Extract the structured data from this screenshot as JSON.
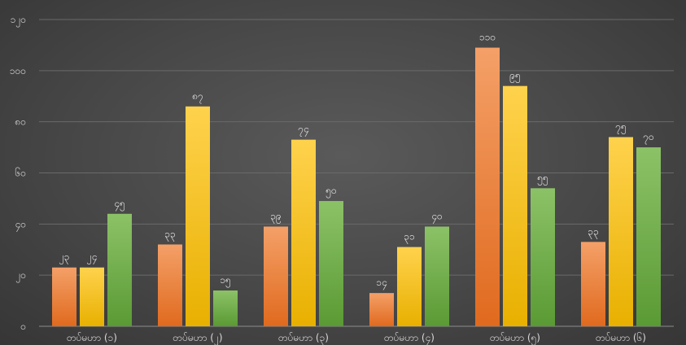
{
  "chart_data": {
    "type": "bar",
    "title": "",
    "xlabel": "",
    "ylabel": "",
    "ylim": [
      0,
      120
    ],
    "ytick_values": [
      0,
      20,
      40,
      60,
      80,
      100,
      120
    ],
    "ytick_labels": [
      "၀",
      "၂၀",
      "၄၀",
      "၆၀",
      "၈၀",
      "၁၀၀",
      "၁၂၀"
    ],
    "grid": true,
    "legend": "none",
    "categories": [
      "တပ်မဟာ (၁)",
      "တပ်မဟာ (၂)",
      "တပ်မဟာ (၃)",
      "တပ်မဟာ (၄)",
      "တပ်မဟာ (၅)",
      "တပ်မဟာ (၆)"
    ],
    "series": [
      {
        "color": "#ed7d31",
        "values": [
          23,
          32,
          39,
          13,
          109,
          33
        ],
        "labels": [
          "၂၃",
          "၃၃",
          "၃၉",
          "၁၄",
          "၁၁၀",
          "၃၃"
        ]
      },
      {
        "color": "#ffc000",
        "values": [
          23,
          86,
          73,
          31,
          94,
          74
        ],
        "labels": [
          "၂၄",
          "၈၇",
          "၇၄",
          "၃၁",
          "၉၅",
          "၇၅"
        ]
      },
      {
        "color": "#70ad47",
        "values": [
          44,
          14,
          49,
          39,
          54,
          70
        ],
        "labels": [
          "၄၅",
          "၁၅",
          "၅၀",
          "၄၀",
          "၅၅",
          "၇၀"
        ]
      }
    ]
  }
}
